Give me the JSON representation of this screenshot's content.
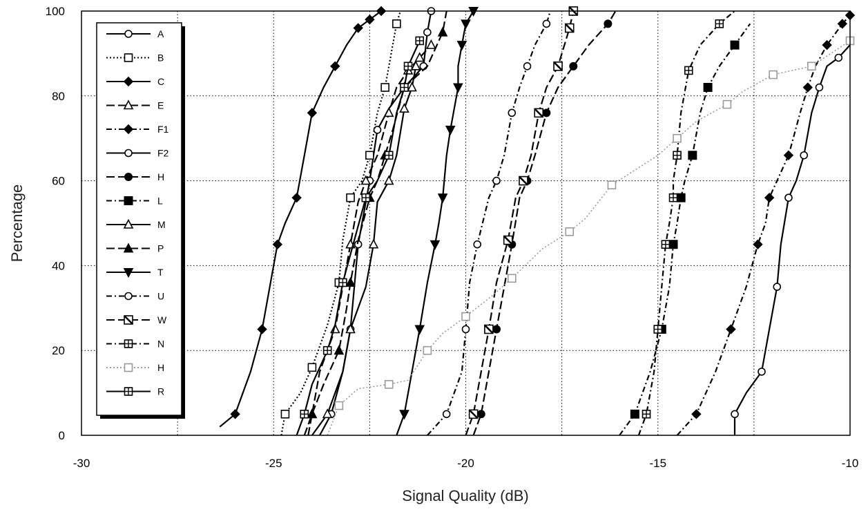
{
  "chart_data": {
    "type": "line",
    "title": "",
    "xlabel": "Signal Quality (dB)",
    "ylabel": "Percentage",
    "xlim": [
      -30,
      -10
    ],
    "ylim": [
      0,
      100
    ],
    "xticks": [
      -30,
      -25,
      -20,
      -15,
      -10
    ],
    "yticks": [
      0,
      20,
      40,
      60,
      80,
      100
    ],
    "grid": true,
    "legend_position": "top-left",
    "series": [
      {
        "name": "A",
        "marker": "circle-open",
        "dash": "solid",
        "color": "#000000",
        "x": [
          -23.8,
          -23.5,
          -23.2,
          -23.0,
          -22.9,
          -22.8,
          -22.6,
          -22.5,
          -22.4,
          -22.3,
          -22.0,
          -21.6,
          -21.3,
          -21.1,
          -21.0,
          -20.9
        ],
        "y": [
          0,
          5,
          15,
          25,
          35,
          45,
          55,
          60,
          66,
          72,
          77,
          82,
          85,
          87,
          95,
          100
        ]
      },
      {
        "name": "B",
        "marker": "square-open",
        "dash": "dotted",
        "color": "#000000",
        "x": [
          -24.8,
          -24.7,
          -24.3,
          -24.0,
          -23.6,
          -23.3,
          -23.2,
          -23.0,
          -22.7,
          -22.5,
          -22.3,
          -22.1,
          -22.0,
          -21.8,
          -21.7
        ],
        "y": [
          0,
          5,
          10,
          16,
          26,
          36,
          46,
          56,
          60,
          66,
          76,
          82,
          87,
          97,
          100
        ]
      },
      {
        "name": "C",
        "marker": "diamond-filled",
        "dash": "solid",
        "color": "#000000",
        "x": [
          -26.4,
          -26.0,
          -25.6,
          -25.3,
          -25.1,
          -24.9,
          -24.7,
          -24.4,
          -24.2,
          -24.0,
          -23.7,
          -23.4,
          -23.1,
          -22.8,
          -22.5,
          -22.2
        ],
        "y": [
          2,
          5,
          15,
          25,
          35,
          45,
          50,
          56,
          66,
          76,
          82,
          87,
          92,
          96,
          98,
          100
        ]
      },
      {
        "name": "E",
        "marker": "triangle-open",
        "dash": "longdash",
        "color": "#000000",
        "x": [
          -24.1,
          -24.0,
          -23.8,
          -23.4,
          -23.2,
          -23.0,
          -22.8,
          -22.6,
          -22.3,
          -22.0,
          -21.8,
          -21.5,
          -21.2,
          -20.9
        ],
        "y": [
          0,
          5,
          15,
          25,
          35,
          45,
          55,
          60,
          66,
          76,
          82,
          86,
          89,
          92
        ]
      },
      {
        "name": "F1",
        "marker": "diamond-filled",
        "dash": "dashdot",
        "color": "#000000",
        "x": [
          -14.5,
          -14.0,
          -13.5,
          -13.1,
          -12.7,
          -12.4,
          -12.2,
          -12.1,
          -11.9,
          -11.6,
          -11.3,
          -11.1,
          -10.9,
          -10.6,
          -10.2,
          -10.0
        ],
        "y": [
          0,
          5,
          15,
          25,
          35,
          45,
          50,
          56,
          60,
          66,
          76,
          82,
          87,
          92,
          97,
          99
        ]
      },
      {
        "name": "F2",
        "marker": "circle-open",
        "dash": "solid",
        "color": "#000000",
        "x": [
          -13.0,
          -13.0,
          -12.7,
          -12.3,
          -12.1,
          -11.9,
          -11.8,
          -11.6,
          -11.4,
          -11.2,
          -11.0,
          -10.8,
          -10.6,
          -10.3,
          -10.0
        ],
        "y": [
          0,
          5,
          10,
          15,
          25,
          35,
          45,
          56,
          60,
          66,
          76,
          82,
          87,
          89,
          92
        ]
      },
      {
        "name": "H",
        "marker": "circle-filled",
        "dash": "longdash",
        "color": "#000000",
        "x": [
          -19.8,
          -19.6,
          -19.4,
          -19.2,
          -19.0,
          -18.8,
          -18.6,
          -18.4,
          -18.2,
          -17.9,
          -17.6,
          -17.2,
          -16.8,
          -16.3,
          -16.1
        ],
        "y": [
          0,
          5,
          15,
          25,
          35,
          45,
          56,
          60,
          66,
          76,
          82,
          87,
          92,
          97,
          100
        ]
      },
      {
        "name": "L",
        "marker": "square-filled",
        "dash": "dashdot",
        "color": "#000000",
        "x": [
          -16.0,
          -15.6,
          -15.2,
          -14.9,
          -14.7,
          -14.6,
          -14.5,
          -14.4,
          -14.3,
          -14.1,
          -13.9,
          -13.7,
          -13.4,
          -13.0,
          -12.6
        ],
        "y": [
          0,
          5,
          15,
          25,
          35,
          45,
          50,
          56,
          60,
          66,
          76,
          82,
          87,
          92,
          97
        ]
      },
      {
        "name": "M",
        "marker": "triangle-open",
        "dash": "solid",
        "color": "#000000",
        "x": [
          -24.0,
          -23.6,
          -23.2,
          -23.0,
          -22.6,
          -22.4,
          -22.3,
          -22.0,
          -21.8,
          -21.6,
          -21.4,
          -21.3
        ],
        "y": [
          0,
          5,
          15,
          25,
          35,
          45,
          55,
          60,
          66,
          77,
          82,
          87
        ]
      },
      {
        "name": "P",
        "marker": "triangle-filled",
        "dash": "longdash",
        "color": "#000000",
        "x": [
          -24.2,
          -24.0,
          -23.7,
          -23.3,
          -23.1,
          -23.0,
          -22.8,
          -22.5,
          -22.3,
          -22.1,
          -21.9,
          -21.6,
          -21.0,
          -20.6,
          -20.5
        ],
        "y": [
          0,
          5,
          12,
          20,
          30,
          36,
          46,
          56,
          60,
          66,
          72,
          82,
          87,
          95,
          100
        ]
      },
      {
        "name": "T",
        "marker": "triangle-down-filled",
        "dash": "solid",
        "color": "#000000",
        "x": [
          -21.8,
          -21.6,
          -21.4,
          -21.2,
          -21.0,
          -20.8,
          -20.7,
          -20.6,
          -20.5,
          -20.4,
          -20.3,
          -20.2,
          -20.2,
          -20.1,
          -20.0,
          -19.8
        ],
        "y": [
          0,
          5,
          15,
          25,
          36,
          45,
          50,
          56,
          66,
          72,
          77,
          82,
          87,
          92,
          97,
          100
        ]
      },
      {
        "name": "U",
        "marker": "circle-open",
        "dash": "dashdot",
        "color": "#000000",
        "x": [
          -21.0,
          -20.5,
          -20.1,
          -20.0,
          -19.9,
          -19.7,
          -19.4,
          -19.2,
          -19.0,
          -18.8,
          -18.6,
          -18.4,
          -18.2,
          -17.9,
          -17.8
        ],
        "y": [
          0,
          5,
          15,
          25,
          36,
          45,
          56,
          60,
          66,
          76,
          82,
          87,
          92,
          97,
          100
        ]
      },
      {
        "name": "W",
        "marker": "square-crossed",
        "dash": "longdash",
        "color": "#000000",
        "x": [
          -20.0,
          -19.8,
          -19.6,
          -19.4,
          -19.2,
          -18.9,
          -18.7,
          -18.5,
          -18.3,
          -18.1,
          -17.9,
          -17.6,
          -17.3,
          -17.2
        ],
        "y": [
          0,
          5,
          15,
          25,
          36,
          46,
          56,
          60,
          66,
          76,
          82,
          87,
          96,
          100
        ]
      },
      {
        "name": "N",
        "marker": "square-plus",
        "dash": "dashdot",
        "color": "#000000",
        "x": [
          -15.5,
          -15.3,
          -15.1,
          -15.0,
          -14.9,
          -14.8,
          -14.7,
          -14.6,
          -14.6,
          -14.5,
          -14.4,
          -14.2,
          -13.9,
          -13.4,
          -13.0
        ],
        "y": [
          0,
          5,
          15,
          25,
          35,
          45,
          50,
          56,
          60,
          66,
          76,
          86,
          92,
          97,
          100
        ]
      },
      {
        "name": "H",
        "marker": "square-open",
        "dash": "dotted",
        "color": "#9a9a9a",
        "x": [
          -23.6,
          -23.3,
          -22.8,
          -22.0,
          -21.5,
          -21.0,
          -20.6,
          -20.0,
          -19.3,
          -18.8,
          -18.0,
          -17.3,
          -16.9,
          -16.2,
          -15.0,
          -14.5,
          -14.0,
          -13.2,
          -12.8,
          -12.0,
          -11.0,
          -10.0
        ],
        "y": [
          0,
          7,
          11,
          12,
          13,
          20,
          24,
          28,
          33,
          37,
          44,
          48,
          51,
          59,
          66,
          70,
          74,
          78,
          81,
          85,
          87,
          93
        ]
      },
      {
        "name": "R",
        "marker": "square-plus",
        "dash": "solid",
        "color": "#000000",
        "x": [
          -24.4,
          -24.2,
          -24.0,
          -23.6,
          -23.4,
          -23.2,
          -22.9,
          -22.6,
          -22.3,
          -22.0,
          -21.8,
          -21.6,
          -21.5,
          -21.2
        ],
        "y": [
          0,
          5,
          12,
          20,
          26,
          36,
          46,
          56,
          60,
          66,
          76,
          82,
          87,
          93
        ]
      }
    ]
  }
}
